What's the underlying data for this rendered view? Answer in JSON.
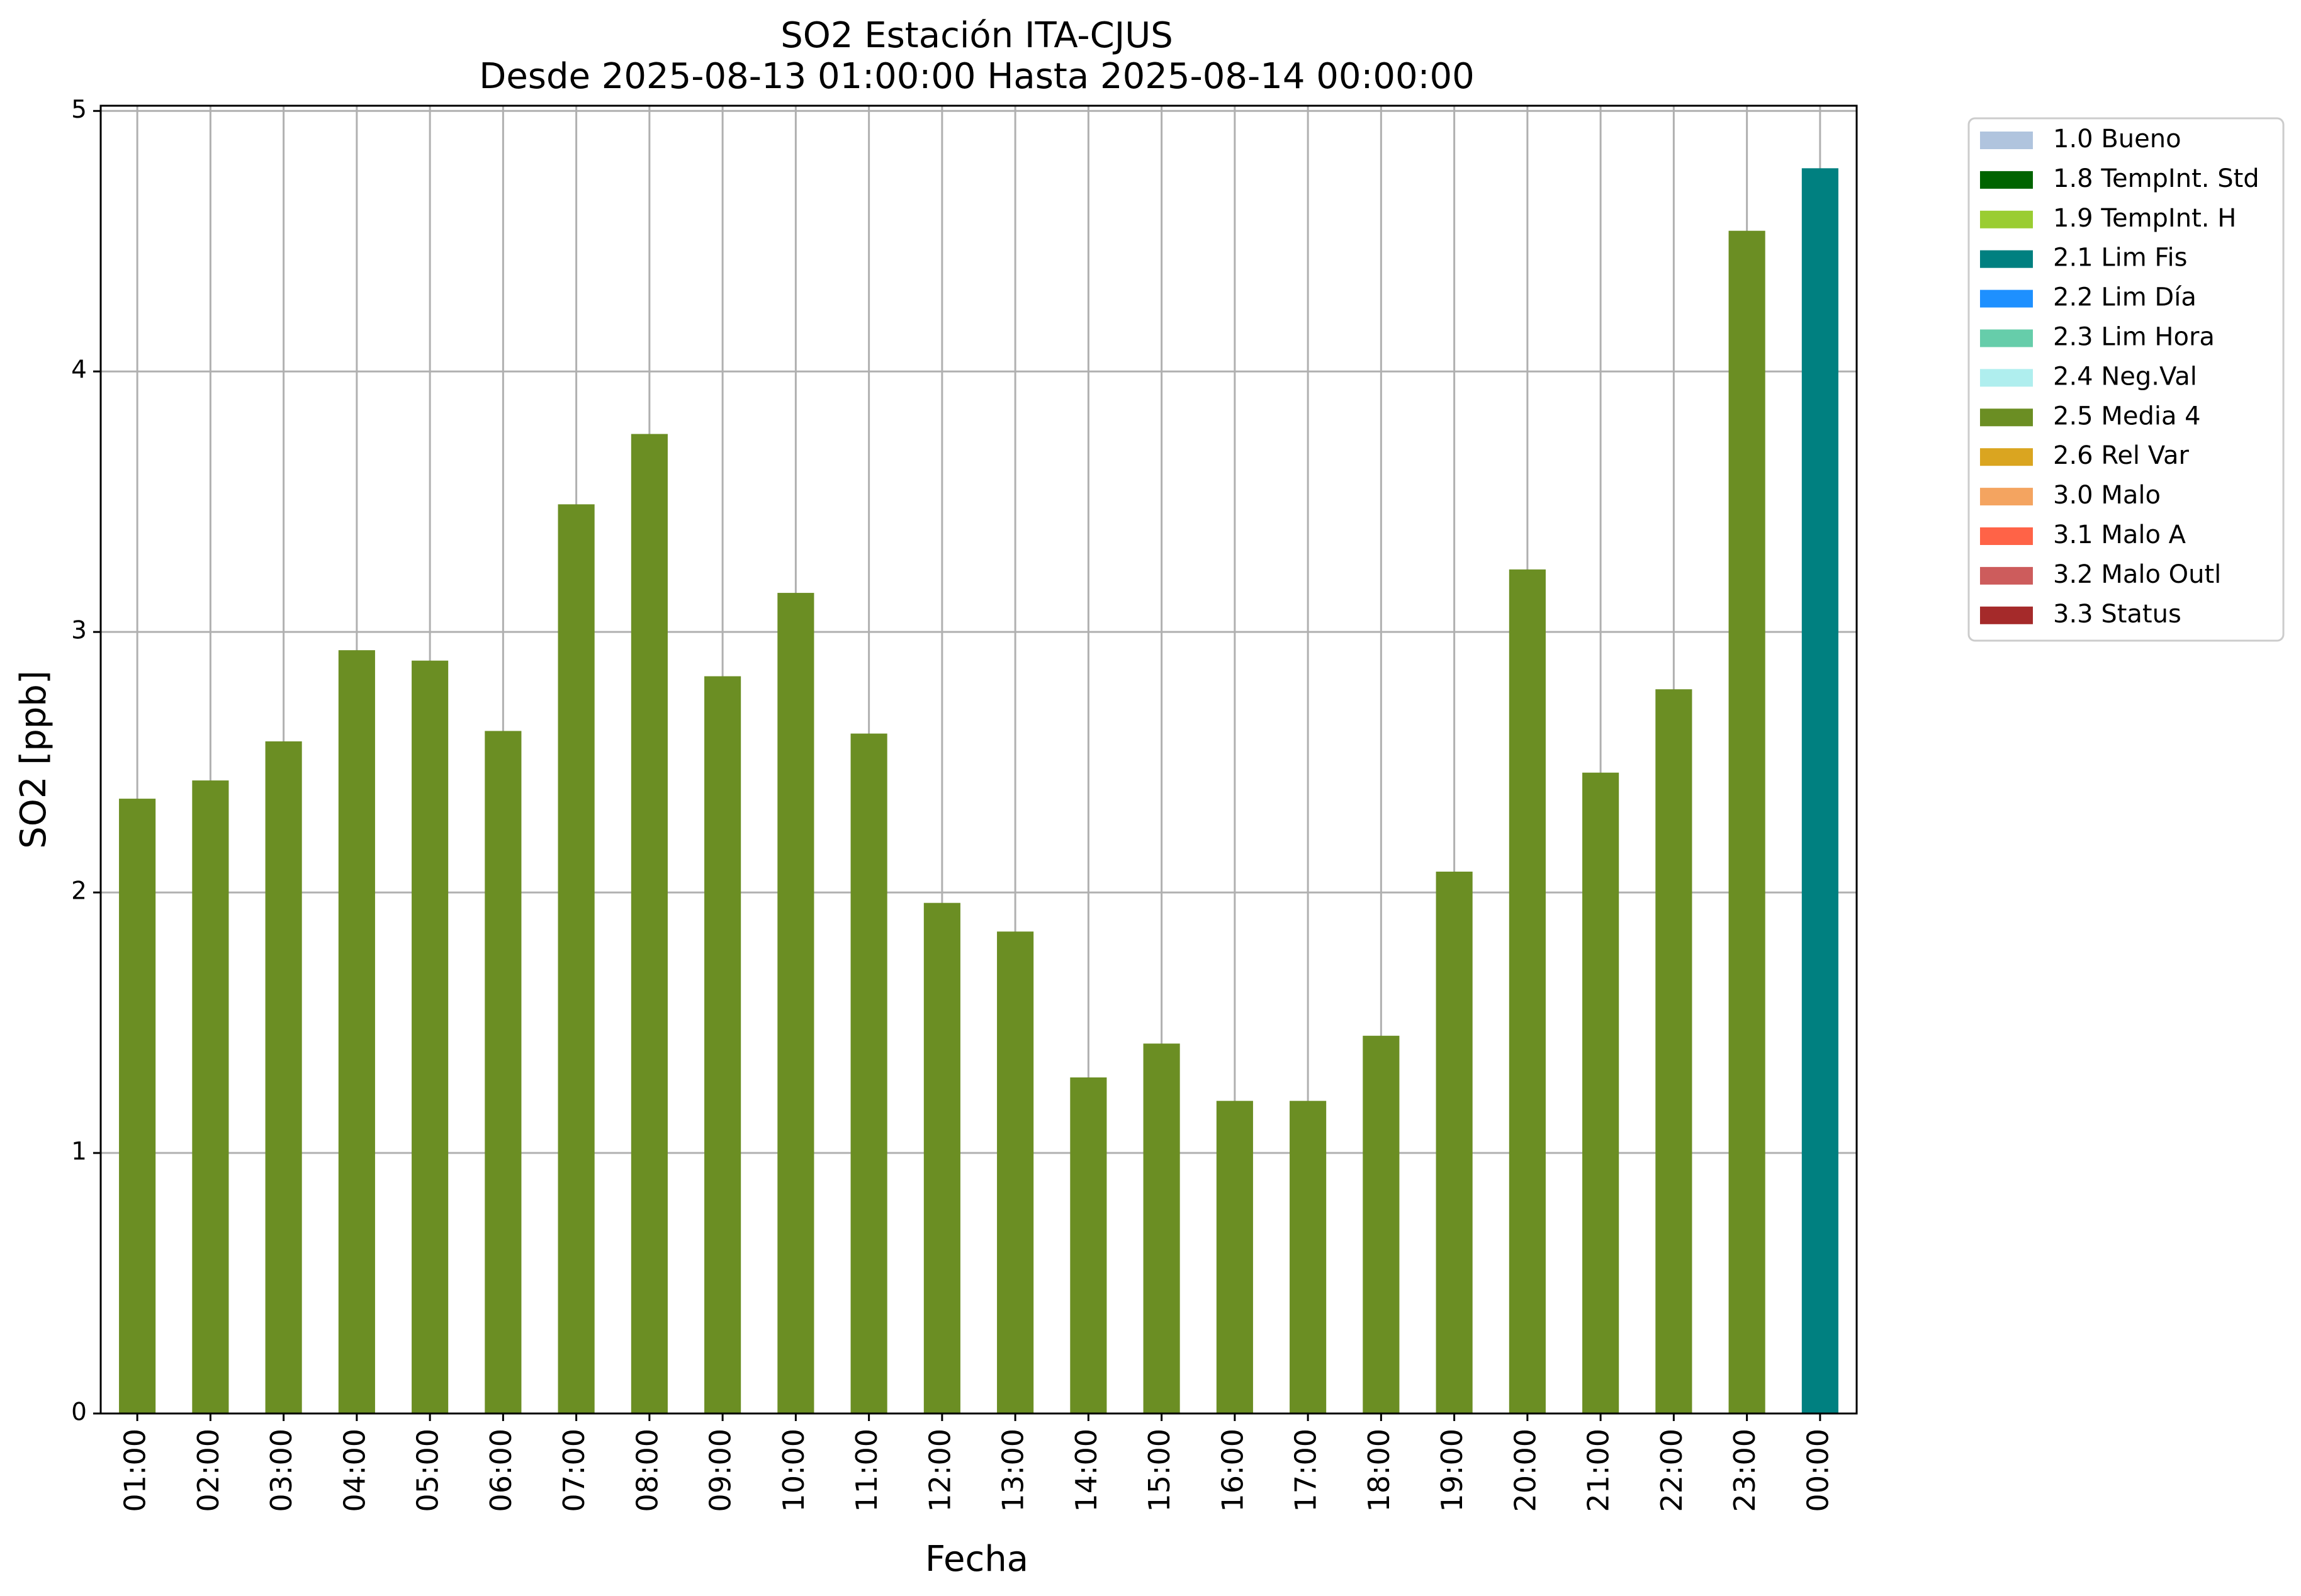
{
  "chart_data": {
    "type": "bar",
    "title": "SO2 Estación ITA-CJUS",
    "subtitle": "Desde 2025-08-13 01:00:00 Hasta 2025-08-14 00:00:00",
    "xlabel": "Fecha",
    "ylabel": "SO2 [ppb]",
    "ylim": [
      0,
      5.02
    ],
    "yticks": [
      "0",
      "1",
      "2",
      "3",
      "4",
      "5"
    ],
    "grid": true,
    "legend_position": "outside-top-right",
    "categories": [
      "01:00",
      "02:00",
      "03:00",
      "04:00",
      "05:00",
      "06:00",
      "07:00",
      "08:00",
      "09:00",
      "10:00",
      "11:00",
      "12:00",
      "13:00",
      "14:00",
      "15:00",
      "16:00",
      "17:00",
      "18:00",
      "19:00",
      "20:00",
      "21:00",
      "22:00",
      "23:00",
      "00:00"
    ],
    "values": [
      2.36,
      2.43,
      2.58,
      2.93,
      2.89,
      2.62,
      3.49,
      3.76,
      2.83,
      3.15,
      2.61,
      1.96,
      1.85,
      1.29,
      1.42,
      1.2,
      1.2,
      1.45,
      2.08,
      3.24,
      2.46,
      2.78,
      4.54,
      4.78
    ],
    "flags": [
      "2.5 Media 4",
      "2.5 Media 4",
      "2.5 Media 4",
      "2.5 Media 4",
      "2.5 Media 4",
      "2.5 Media 4",
      "2.5 Media 4",
      "2.5 Media 4",
      "2.5 Media 4",
      "2.5 Media 4",
      "2.5 Media 4",
      "2.5 Media 4",
      "2.5 Media 4",
      "2.5 Media 4",
      "2.5 Media 4",
      "2.5 Media 4",
      "2.5 Media 4",
      "2.5 Media 4",
      "2.5 Media 4",
      "2.5 Media 4",
      "2.5 Media 4",
      "2.5 Media 4",
      "2.5 Media 4",
      "2.1 Lim Fis"
    ],
    "legend": [
      {
        "name": "1.0 Bueno",
        "color": "#b0c4de"
      },
      {
        "name": "1.8 TempInt. Std",
        "color": "#006400"
      },
      {
        "name": "1.9 TempInt. H",
        "color": "#9acd32"
      },
      {
        "name": "2.1 Lim Fis",
        "color": "#008080"
      },
      {
        "name": "2.2 Lim Día",
        "color": "#1e90ff"
      },
      {
        "name": "2.3 Lim Hora",
        "color": "#66cdaa"
      },
      {
        "name": "2.4 Neg.Val",
        "color": "#afeeee"
      },
      {
        "name": "2.5 Media 4",
        "color": "#6b8e23"
      },
      {
        "name": "2.6 Rel Var",
        "color": "#daa520"
      },
      {
        "name": "3.0 Malo",
        "color": "#f4a460"
      },
      {
        "name": "3.1 Malo A",
        "color": "#ff6347"
      },
      {
        "name": "3.2 Malo Outl",
        "color": "#cd5c5c"
      },
      {
        "name": "3.3 Status",
        "color": "#a52a2a"
      }
    ]
  }
}
